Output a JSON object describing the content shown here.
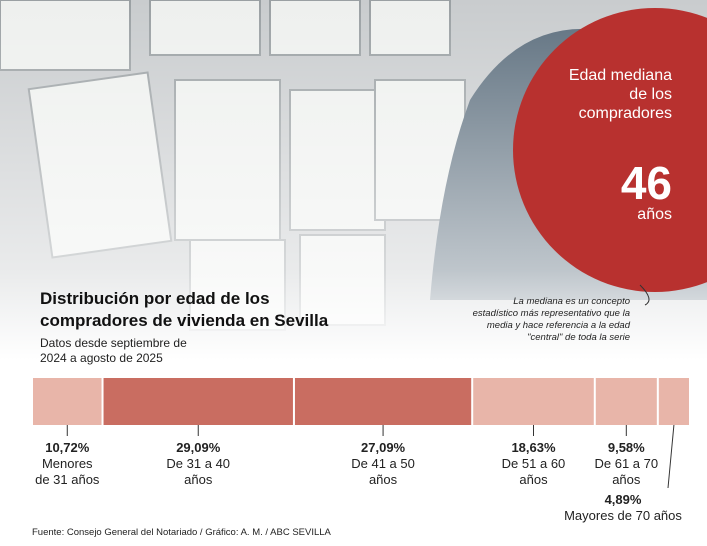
{
  "chart_data": {
    "type": "stacked_bar",
    "title": "Distribución por edad de los compradores de vivienda en Sevilla",
    "subtitle": "Datos desde septiembre de 2024 a agosto de 2025",
    "categories": [
      "Menores de 31 años",
      "De 31 a 40 años",
      "De 41 a 50 años",
      "De 51 a 60 años",
      "De 61 a 70 años",
      "Mayores de 70 años"
    ],
    "values": [
      10.72,
      29.09,
      27.09,
      18.63,
      9.58,
      4.89
    ],
    "value_labels": [
      "10,72%",
      "29,09%",
      "27,09%",
      "18,63%",
      "9,58%",
      "4,89%"
    ],
    "colors": [
      "#e8b5a9",
      "#c96d61",
      "#c96d61",
      "#e8b5a9",
      "#e8b5a9",
      "#e8b5a9"
    ],
    "median_label": "Edad mediana de los compradores",
    "median": 46,
    "median_unit": "años",
    "note": "La mediana es un concepto estadístico más representativo que la media y hace referencia a la edad \"central\" de toda la serie",
    "source": "Fuente: Consejo General del Notariado / Gráfico: A. M. / ABC SEVILLA"
  }
}
